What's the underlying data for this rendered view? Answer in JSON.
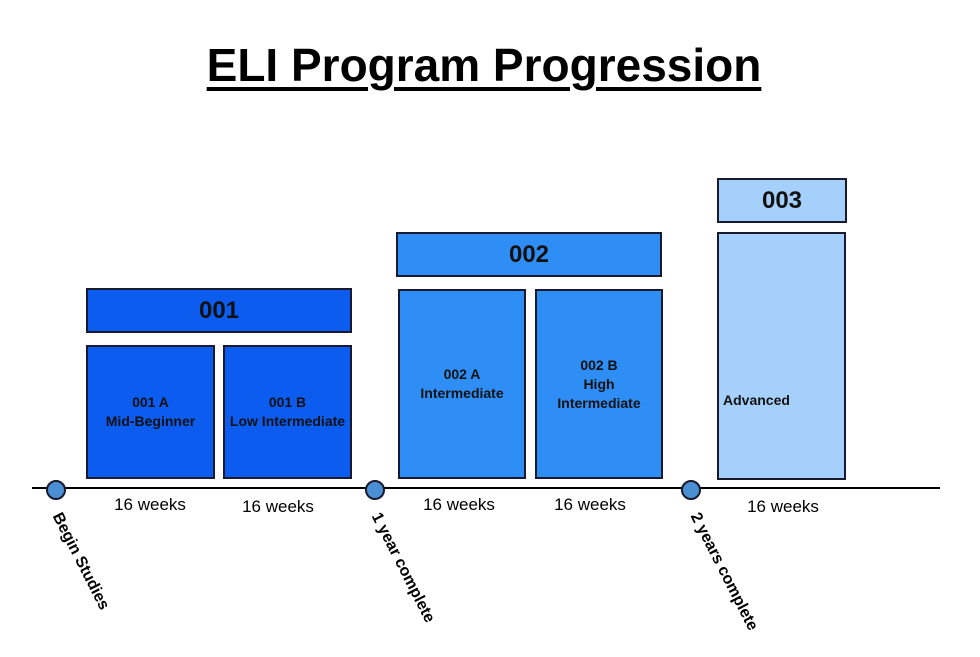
{
  "title": "ELI Program Progression",
  "programs": [
    {
      "header": "001",
      "levels": [
        {
          "code": "001 A",
          "label": "Mid-Beginner",
          "duration": "16 weeks"
        },
        {
          "code": "001 B",
          "label": "Low Intermediate",
          "duration": "16 weeks"
        }
      ]
    },
    {
      "header": "002",
      "levels": [
        {
          "code": "002 A",
          "label": "Intermediate",
          "duration": "16 weeks"
        },
        {
          "code": "002 B",
          "label": "High Intermediate",
          "duration": "16 weeks"
        }
      ]
    },
    {
      "header": "003",
      "levels": [
        {
          "code": "",
          "label": "Advanced",
          "duration": "16 weeks"
        }
      ]
    }
  ],
  "milestones": [
    "Begin Studies",
    "1 year complete",
    "2 years complete"
  ],
  "colors": {
    "level_001": "#0d5cf0",
    "level_002": "#2f8ef5",
    "level_003": "#a5d0fb",
    "dot": "#4a8fd4"
  }
}
